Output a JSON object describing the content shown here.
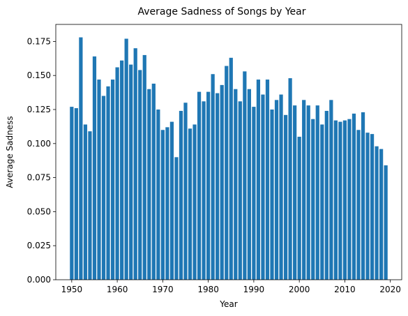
{
  "chart_data": {
    "type": "bar",
    "title": "Average Sadness of Songs by Year",
    "xlabel": "Year",
    "ylabel": "Average Sadness",
    "bar_color": "#1f77b4",
    "xlim": [
      1946.5,
      2022.5
    ],
    "ylim": [
      0,
      0.1875
    ],
    "xticks": [
      1950,
      1960,
      1970,
      1980,
      1990,
      2000,
      2010,
      2020
    ],
    "yticks": [
      0.0,
      0.025,
      0.05,
      0.075,
      0.1,
      0.125,
      0.15,
      0.175
    ],
    "ytick_labels": [
      "0.000",
      "0.025",
      "0.050",
      "0.075",
      "0.100",
      "0.125",
      "0.150",
      "0.175"
    ],
    "grid": false,
    "x": [
      1950,
      1951,
      1952,
      1953,
      1954,
      1955,
      1956,
      1957,
      1958,
      1959,
      1960,
      1961,
      1962,
      1963,
      1964,
      1965,
      1966,
      1967,
      1968,
      1969,
      1970,
      1971,
      1972,
      1973,
      1974,
      1975,
      1976,
      1977,
      1978,
      1979,
      1980,
      1981,
      1982,
      1983,
      1984,
      1985,
      1986,
      1987,
      1988,
      1989,
      1990,
      1991,
      1992,
      1993,
      1994,
      1995,
      1996,
      1997,
      1998,
      1999,
      2000,
      2001,
      2002,
      2003,
      2004,
      2005,
      2006,
      2007,
      2008,
      2009,
      2010,
      2011,
      2012,
      2013,
      2014,
      2015,
      2016,
      2017,
      2018,
      2019
    ],
    "values": [
      0.127,
      0.126,
      0.178,
      0.114,
      0.109,
      0.164,
      0.147,
      0.135,
      0.142,
      0.147,
      0.156,
      0.161,
      0.177,
      0.158,
      0.17,
      0.154,
      0.165,
      0.14,
      0.144,
      0.125,
      0.11,
      0.112,
      0.116,
      0.09,
      0.124,
      0.13,
      0.111,
      0.114,
      0.138,
      0.131,
      0.138,
      0.151,
      0.137,
      0.143,
      0.157,
      0.163,
      0.14,
      0.131,
      0.153,
      0.14,
      0.127,
      0.147,
      0.136,
      0.147,
      0.125,
      0.132,
      0.136,
      0.121,
      0.148,
      0.128,
      0.105,
      0.132,
      0.128,
      0.118,
      0.128,
      0.114,
      0.124,
      0.132,
      0.117,
      0.116,
      0.117,
      0.118,
      0.122,
      0.11,
      0.123,
      0.108,
      0.107,
      0.098,
      0.096,
      0.084
    ]
  }
}
